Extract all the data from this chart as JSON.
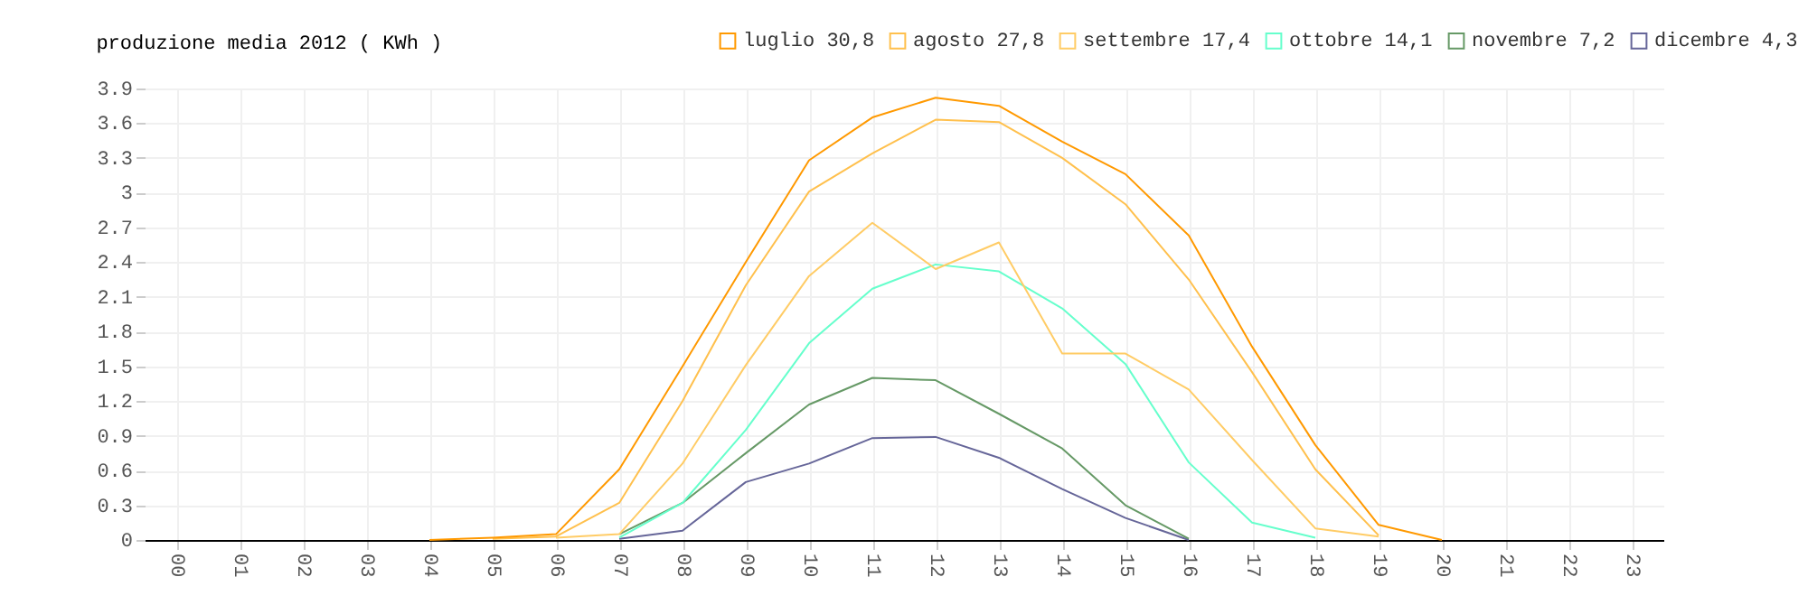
{
  "chart_data": {
    "type": "line",
    "title": "produzione media 2012 ( KWh )",
    "categories": [
      "00",
      "01",
      "02",
      "03",
      "04",
      "05",
      "06",
      "07",
      "08",
      "09",
      "10",
      "11",
      "12",
      "13",
      "14",
      "15",
      "16",
      "17",
      "18",
      "19",
      "20",
      "21",
      "22",
      "23"
    ],
    "series": [
      {
        "name": "luglio 30,8",
        "color": "#ff9900",
        "values": [
          null,
          null,
          null,
          null,
          0,
          0.02,
          0.05,
          0.61,
          1.5,
          2.4,
          3.28,
          3.65,
          3.82,
          3.75,
          3.44,
          3.16,
          2.63,
          1.67,
          0.82,
          0.13,
          0,
          null,
          null,
          null
        ]
      },
      {
        "name": "agosto 27,8",
        "color": "#ffc04d",
        "values": [
          null,
          null,
          null,
          null,
          null,
          0.01,
          0.03,
          0.32,
          1.2,
          2.2,
          3.01,
          3.34,
          3.63,
          3.61,
          3.3,
          2.9,
          2.25,
          1.45,
          0.61,
          0.04,
          null,
          null,
          null,
          null
        ]
      },
      {
        "name": "settembre 17,4",
        "color": "#ffcc66",
        "values": [
          null,
          null,
          null,
          null,
          null,
          null,
          0.02,
          0.05,
          0.66,
          1.51,
          2.28,
          2.74,
          2.34,
          2.57,
          1.61,
          1.61,
          1.3,
          0.69,
          0.1,
          0.03,
          null,
          null,
          null,
          null
        ]
      },
      {
        "name": "ottobre 14,1",
        "color": "#66ffcc",
        "values": [
          null,
          null,
          null,
          null,
          null,
          null,
          null,
          0.02,
          0.32,
          0.95,
          1.7,
          2.17,
          2.38,
          2.32,
          2.0,
          1.52,
          0.67,
          0.15,
          0.02,
          null,
          null,
          null,
          null,
          null
        ]
      },
      {
        "name": "novembre 7,2",
        "color": "#669966",
        "values": [
          null,
          null,
          null,
          null,
          null,
          null,
          null,
          0.05,
          0.32,
          0.75,
          1.17,
          1.4,
          1.38,
          1.09,
          0.79,
          0.3,
          0.01,
          null,
          null,
          null,
          null,
          null,
          null,
          null
        ]
      },
      {
        "name": "dicembre 4,3",
        "color": "#666699",
        "values": [
          null,
          null,
          null,
          null,
          null,
          null,
          null,
          0.01,
          0.08,
          0.5,
          0.66,
          0.88,
          0.89,
          0.71,
          0.44,
          0.19,
          0,
          null,
          null,
          null,
          null,
          null,
          null,
          null
        ]
      }
    ],
    "ylim": [
      0,
      3.9
    ],
    "yticks": [
      0,
      0.3,
      0.6,
      0.9,
      1.2,
      1.5,
      1.8,
      2.1,
      2.4,
      2.7,
      3,
      3.3,
      3.6,
      3.9
    ],
    "grid": true,
    "legend": "top right",
    "marker": "none",
    "line_style": "solid"
  }
}
